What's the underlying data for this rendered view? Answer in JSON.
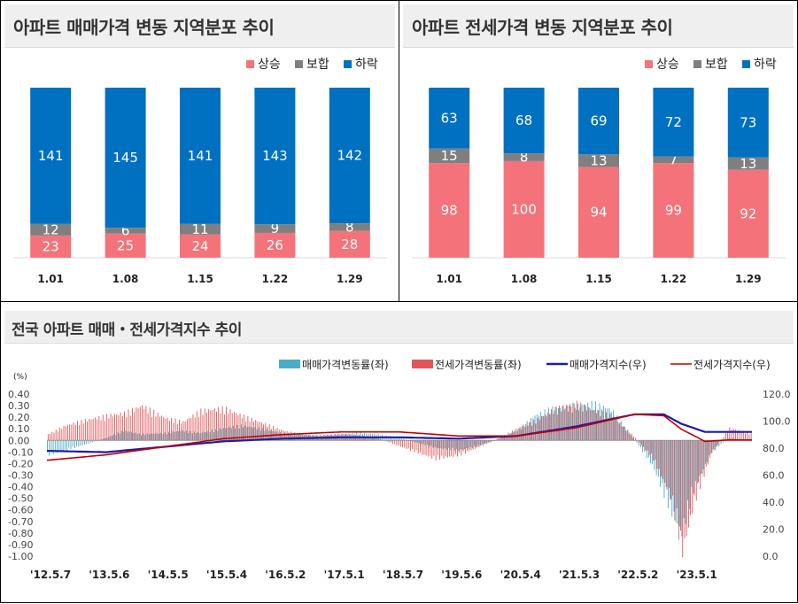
{
  "chart_data": [
    {
      "type": "bar",
      "stacked": true,
      "title": "아파트 매매가격 변동 지역분포 추이",
      "categories": [
        "1.01",
        "1.08",
        "1.15",
        "1.22",
        "1.29"
      ],
      "series": [
        {
          "name": "상승",
          "color": "#f4737a",
          "values": [
            23,
            25,
            24,
            26,
            28
          ]
        },
        {
          "name": "보합",
          "color": "#7f7f7f",
          "values": [
            12,
            6,
            11,
            9,
            8
          ]
        },
        {
          "name": "하락",
          "color": "#0070c0",
          "values": [
            141,
            145,
            141,
            143,
            142
          ]
        }
      ],
      "legend": "top-right"
    },
    {
      "type": "bar",
      "stacked": true,
      "title": "아파트 전세가격 변동 지역분포 추이",
      "categories": [
        "1.01",
        "1.08",
        "1.15",
        "1.22",
        "1.29"
      ],
      "series": [
        {
          "name": "상승",
          "color": "#f4737a",
          "values": [
            98,
            100,
            94,
            99,
            92
          ]
        },
        {
          "name": "보합",
          "color": "#7f7f7f",
          "values": [
            15,
            8,
            13,
            7,
            13
          ]
        },
        {
          "name": "하락",
          "color": "#0070c0",
          "values": [
            63,
            68,
            69,
            72,
            73
          ]
        }
      ],
      "legend": "top-right"
    },
    {
      "type": "bar+line",
      "title": "전국 아파트 매매・전세가격지수 추이",
      "unit_label": "(%)",
      "x_ticks": [
        "'12.5.7",
        "'13.5.6",
        "'14.5.5",
        "'15.5.4",
        "'16.5.2",
        "'17.5.1",
        "'18.5.7",
        "'19.5.6",
        "'20.5.4",
        "'21.5.3",
        "'22.5.2",
        "'23.5.1"
      ],
      "y_left": {
        "range": [
          -1.0,
          0.4
        ],
        "ticks": [
          "0.40",
          "0.30",
          "0.20",
          "0.10",
          "0.00",
          "-0.10",
          "-0.20",
          "-0.30",
          "-0.40",
          "-0.50",
          "-0.60",
          "-0.70",
          "-0.80",
          "-0.90",
          "-1.00"
        ]
      },
      "y_right": {
        "range": [
          0,
          120
        ],
        "ticks": [
          "120.0",
          "100.0",
          "80.0",
          "60.0",
          "40.0",
          "20.0",
          "0.0"
        ]
      },
      "legend": "top-right",
      "series": [
        {
          "name": "매매가격변동률(좌)",
          "type": "bar",
          "axis": "left",
          "color": "#4bacc6",
          "points": [
            [
              0,
              -0.12
            ],
            [
              0.3,
              -0.08
            ],
            [
              0.6,
              -0.04
            ],
            [
              1,
              0.02
            ],
            [
              1.3,
              0.08
            ],
            [
              1.6,
              0.05
            ],
            [
              2,
              0.06
            ],
            [
              2.3,
              0.08
            ],
            [
              2.6,
              0.06
            ],
            [
              3,
              0.1
            ],
            [
              3.3,
              0.12
            ],
            [
              3.6,
              0.1
            ],
            [
              4,
              0.06
            ],
            [
              4.3,
              0.05
            ],
            [
              4.6,
              0.04
            ],
            [
              5,
              0.05
            ],
            [
              5.3,
              0.06
            ],
            [
              5.6,
              0.05
            ],
            [
              6,
              0.02
            ],
            [
              6.3,
              -0.02
            ],
            [
              6.6,
              -0.06
            ],
            [
              7,
              -0.08
            ],
            [
              7.3,
              -0.05
            ],
            [
              7.6,
              0.0
            ],
            [
              8,
              0.08
            ],
            [
              8.3,
              0.2
            ],
            [
              8.6,
              0.26
            ],
            [
              9,
              0.28
            ],
            [
              9.3,
              0.3
            ],
            [
              9.6,
              0.25
            ],
            [
              10,
              0.0
            ],
            [
              10.3,
              -0.2
            ],
            [
              10.6,
              -0.55
            ],
            [
              10.8,
              -0.75
            ],
            [
              11,
              -0.4
            ],
            [
              11.3,
              -0.1
            ],
            [
              11.6,
              0.02
            ],
            [
              12,
              0.0
            ]
          ]
        },
        {
          "name": "전세가격변동률(좌)",
          "type": "bar",
          "axis": "left",
          "color": "#e15759",
          "points": [
            [
              0,
              0.05
            ],
            [
              0.3,
              0.12
            ],
            [
              0.6,
              0.16
            ],
            [
              1,
              0.2
            ],
            [
              1.3,
              0.22
            ],
            [
              1.6,
              0.28
            ],
            [
              2,
              0.18
            ],
            [
              2.3,
              0.15
            ],
            [
              2.6,
              0.24
            ],
            [
              3,
              0.26
            ],
            [
              3.3,
              0.2
            ],
            [
              3.6,
              0.15
            ],
            [
              4,
              0.08
            ],
            [
              4.3,
              0.05
            ],
            [
              4.6,
              0.04
            ],
            [
              5,
              0.05
            ],
            [
              5.3,
              0.04
            ],
            [
              5.6,
              0.02
            ],
            [
              6,
              -0.05
            ],
            [
              6.3,
              -0.1
            ],
            [
              6.6,
              -0.15
            ],
            [
              7,
              -0.12
            ],
            [
              7.3,
              -0.06
            ],
            [
              7.6,
              0.0
            ],
            [
              8,
              0.1
            ],
            [
              8.3,
              0.16
            ],
            [
              8.6,
              0.25
            ],
            [
              9,
              0.3
            ],
            [
              9.3,
              0.24
            ],
            [
              9.6,
              0.2
            ],
            [
              10,
              0.02
            ],
            [
              10.3,
              -0.15
            ],
            [
              10.6,
              -0.45
            ],
            [
              10.8,
              -0.9
            ],
            [
              11,
              -0.5
            ],
            [
              11.3,
              -0.1
            ],
            [
              11.6,
              0.1
            ],
            [
              12,
              0.05
            ]
          ]
        },
        {
          "name": "매매가격지수(우)",
          "type": "line",
          "axis": "right",
          "color": "#1c1ca8",
          "points": [
            [
              0,
              78
            ],
            [
              1,
              77
            ],
            [
              2,
              81
            ],
            [
              3,
              85
            ],
            [
              4,
              87
            ],
            [
              5,
              88
            ],
            [
              6,
              88
            ],
            [
              7,
              87
            ],
            [
              8,
              89
            ],
            [
              9,
              96
            ],
            [
              10,
              105
            ],
            [
              10.5,
              105
            ],
            [
              10.8,
              98
            ],
            [
              11.2,
              92
            ],
            [
              11.6,
              92
            ],
            [
              12,
              92
            ]
          ]
        },
        {
          "name": "전세가격지수(우)",
          "type": "line",
          "axis": "right",
          "color": "#c00000",
          "points": [
            [
              0,
              71
            ],
            [
              1,
              75
            ],
            [
              2,
              81
            ],
            [
              3,
              87
            ],
            [
              4,
              90
            ],
            [
              5,
              92
            ],
            [
              6,
              92
            ],
            [
              7,
              89
            ],
            [
              8,
              89
            ],
            [
              9,
              95
            ],
            [
              10,
              105
            ],
            [
              10.5,
              104
            ],
            [
              10.8,
              94
            ],
            [
              11.2,
              85
            ],
            [
              11.6,
              86
            ],
            [
              12,
              86
            ]
          ]
        }
      ]
    }
  ]
}
